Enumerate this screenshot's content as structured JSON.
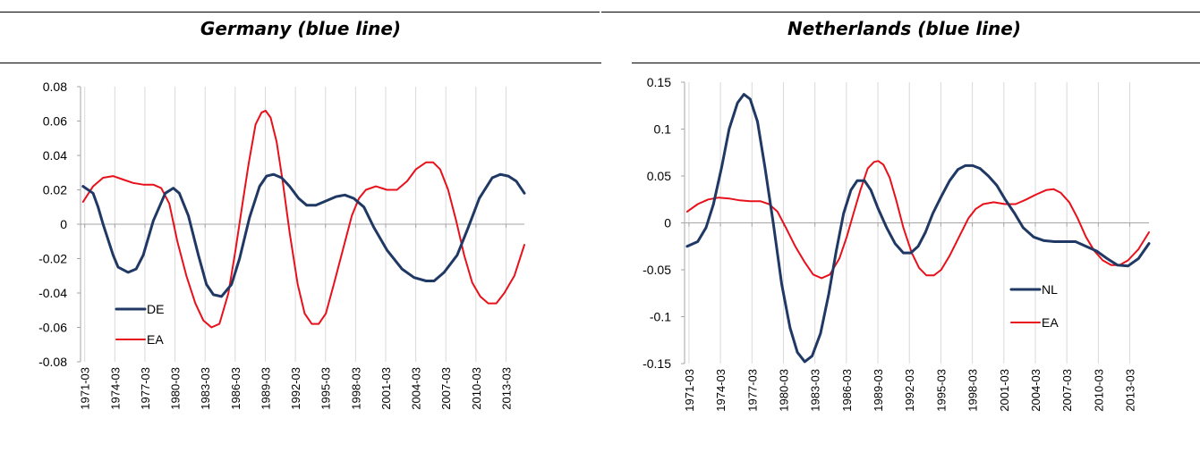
{
  "panels": [
    {
      "title": "Germany (blue line)"
    },
    {
      "title": "Netherlands (blue line)"
    }
  ],
  "colors": {
    "blue": "#1f3864",
    "red": "#e8101a",
    "grid": "#d9d9d9",
    "axis": "#a6a6a6"
  },
  "chart_data": [
    {
      "type": "line",
      "title": "Germany (blue line)",
      "xlabel": "",
      "ylabel": "",
      "x_ticks": [
        "1971-03",
        "1974-03",
        "1977-03",
        "1980-03",
        "1983-03",
        "1986-03",
        "1989-03",
        "1992-03",
        "1995-03",
        "1998-03",
        "2001-03",
        "2004-03",
        "2007-03",
        "2010-03",
        "2013-03"
      ],
      "ylim": [
        -0.08,
        0.08
      ],
      "y_ticks": [
        "-0.08",
        "-0.06",
        "-0.04",
        "-0.02",
        "0",
        "0.02",
        "0.04",
        "0.06",
        "0.08"
      ],
      "y_tick_values": [
        -0.08,
        -0.06,
        -0.04,
        -0.02,
        0,
        0.02,
        0.04,
        0.06,
        0.08
      ],
      "grid": "vertical",
      "legend_position": "bottom-left",
      "series": [
        {
          "name": "DE",
          "color": "#1f3864",
          "width": 3,
          "x": [
            1971.0,
            1972.0,
            1972.5,
            1973.0,
            1974.0,
            1974.5,
            1975.5,
            1976.3,
            1977.0,
            1978.0,
            1979.2,
            1980.0,
            1980.6,
            1981.5,
            1982.5,
            1983.3,
            1984.0,
            1984.8,
            1985.8,
            1986.6,
            1987.6,
            1988.6,
            1989.3,
            1990.0,
            1990.8,
            1991.6,
            1992.5,
            1993.3,
            1994.2,
            1995.0,
            1996.2,
            1997.1,
            1998.0,
            1999.0,
            2000.0,
            2001.3,
            2002.8,
            2004.0,
            2005.2,
            2006.0,
            2007.0,
            2008.3,
            2009.4,
            2010.5,
            2011.8,
            2012.6,
            2013.4,
            2014.2,
            2015.0
          ],
          "y": [
            0.022,
            0.018,
            0.01,
            0.0,
            -0.018,
            -0.025,
            -0.028,
            -0.026,
            -0.018,
            0.002,
            0.018,
            0.021,
            0.018,
            0.005,
            -0.018,
            -0.035,
            -0.041,
            -0.042,
            -0.035,
            -0.02,
            0.004,
            0.022,
            0.028,
            0.029,
            0.027,
            0.022,
            0.015,
            0.011,
            0.011,
            0.013,
            0.016,
            0.017,
            0.015,
            0.01,
            -0.002,
            -0.015,
            -0.026,
            -0.031,
            -0.033,
            -0.033,
            -0.028,
            -0.018,
            -0.002,
            0.015,
            0.027,
            0.029,
            0.028,
            0.025,
            0.018
          ]
        },
        {
          "name": "EA",
          "color": "#e8101a",
          "width": 2,
          "x": [
            1971.0,
            1972.0,
            1973.0,
            1974.0,
            1975.0,
            1976.0,
            1977.0,
            1978.0,
            1978.8,
            1979.6,
            1980.4,
            1981.3,
            1982.2,
            1983.0,
            1983.8,
            1984.6,
            1985.5,
            1986.2,
            1986.9,
            1987.5,
            1988.2,
            1988.8,
            1989.2,
            1989.7,
            1990.3,
            1990.9,
            1991.6,
            1992.4,
            1993.1,
            1993.8,
            1994.5,
            1995.2,
            1996.0,
            1996.9,
            1997.8,
            1998.5,
            1999.2,
            2000.2,
            2001.3,
            2002.3,
            2003.3,
            2004.2,
            2005.2,
            2005.9,
            2006.6,
            2007.4,
            2008.2,
            2009.0,
            2009.8,
            2010.6,
            2011.4,
            2012.2,
            2013.0,
            2014.0,
            2015.0
          ],
          "y": [
            0.013,
            0.022,
            0.027,
            0.028,
            0.026,
            0.024,
            0.023,
            0.023,
            0.021,
            0.012,
            -0.01,
            -0.03,
            -0.046,
            -0.056,
            -0.06,
            -0.058,
            -0.04,
            -0.015,
            0.012,
            0.035,
            0.058,
            0.065,
            0.066,
            0.062,
            0.048,
            0.025,
            -0.005,
            -0.035,
            -0.052,
            -0.058,
            -0.058,
            -0.052,
            -0.035,
            -0.015,
            0.005,
            0.015,
            0.02,
            0.022,
            0.02,
            0.02,
            0.025,
            0.032,
            0.036,
            0.036,
            0.032,
            0.02,
            0.002,
            -0.018,
            -0.034,
            -0.042,
            -0.046,
            -0.046,
            -0.04,
            -0.03,
            -0.012
          ]
        }
      ]
    },
    {
      "type": "line",
      "title": "Netherlands (blue line)",
      "xlabel": "",
      "ylabel": "",
      "x_ticks": [
        "1971-03",
        "1974-03",
        "1977-03",
        "1980-03",
        "1983-03",
        "1986-03",
        "1989-03",
        "1992-03",
        "1995-03",
        "1998-03",
        "2001-03",
        "2004-03",
        "2007-03",
        "2010-03",
        "2013-03"
      ],
      "ylim": [
        -0.15,
        0.15
      ],
      "y_ticks": [
        "-0.15",
        "-0.1",
        "-0.05",
        "0",
        "0.05",
        "0.1",
        "0.15"
      ],
      "y_tick_values": [
        -0.15,
        -0.1,
        -0.05,
        0,
        0.05,
        0.1,
        0.15
      ],
      "grid": "vertical",
      "legend_position": "middle-right",
      "series": [
        {
          "name": "NL",
          "color": "#1f3864",
          "width": 3,
          "x": [
            1971.0,
            1972.0,
            1972.8,
            1973.5,
            1974.3,
            1975.0,
            1975.8,
            1976.4,
            1977.0,
            1977.7,
            1978.4,
            1979.2,
            1980.0,
            1980.8,
            1981.5,
            1982.2,
            1982.9,
            1983.7,
            1984.5,
            1985.2,
            1985.9,
            1986.6,
            1987.2,
            1987.9,
            1988.5,
            1989.2,
            1990.0,
            1990.8,
            1991.6,
            1992.3,
            1993.0,
            1993.7,
            1994.4,
            1995.2,
            1996.0,
            1996.8,
            1997.5,
            1998.2,
            1998.9,
            1999.7,
            2000.5,
            2001.3,
            2002.2,
            2003.0,
            2004.0,
            2005.0,
            2006.0,
            2007.0,
            2008.0,
            2009.0,
            2010.0,
            2011.0,
            2012.0,
            2013.0,
            2014.0,
            2015.0
          ],
          "y": [
            -0.025,
            -0.02,
            -0.005,
            0.02,
            0.06,
            0.1,
            0.128,
            0.137,
            0.132,
            0.108,
            0.06,
            0.0,
            -0.065,
            -0.112,
            -0.138,
            -0.148,
            -0.142,
            -0.118,
            -0.075,
            -0.03,
            0.01,
            0.035,
            0.045,
            0.045,
            0.035,
            0.015,
            -0.005,
            -0.022,
            -0.032,
            -0.032,
            -0.025,
            -0.01,
            0.01,
            0.028,
            0.045,
            0.057,
            0.061,
            0.061,
            0.058,
            0.05,
            0.04,
            0.025,
            0.01,
            -0.005,
            -0.015,
            -0.019,
            -0.02,
            -0.02,
            -0.02,
            -0.025,
            -0.03,
            -0.038,
            -0.045,
            -0.046,
            -0.038,
            -0.022
          ]
        },
        {
          "name": "EA",
          "color": "#e8101a",
          "width": 2,
          "x": [
            1971.0,
            1972.0,
            1973.0,
            1974.0,
            1975.0,
            1976.0,
            1977.0,
            1978.0,
            1978.8,
            1979.6,
            1980.4,
            1981.3,
            1982.2,
            1983.0,
            1983.8,
            1984.6,
            1985.5,
            1986.2,
            1986.9,
            1987.5,
            1988.2,
            1988.8,
            1989.2,
            1989.7,
            1990.3,
            1990.9,
            1991.6,
            1992.4,
            1993.1,
            1993.8,
            1994.5,
            1995.2,
            1996.0,
            1996.9,
            1997.8,
            1998.5,
            1999.2,
            2000.2,
            2001.3,
            2002.3,
            2003.3,
            2004.2,
            2005.2,
            2005.9,
            2006.6,
            2007.4,
            2008.2,
            2009.0,
            2009.8,
            2010.6,
            2011.4,
            2012.2,
            2013.0,
            2014.0,
            2015.0
          ],
          "y": [
            0.012,
            0.02,
            0.025,
            0.027,
            0.026,
            0.024,
            0.023,
            0.023,
            0.02,
            0.012,
            -0.005,
            -0.025,
            -0.042,
            -0.055,
            -0.059,
            -0.055,
            -0.038,
            -0.015,
            0.012,
            0.035,
            0.058,
            0.065,
            0.066,
            0.062,
            0.048,
            0.025,
            -0.005,
            -0.032,
            -0.048,
            -0.056,
            -0.056,
            -0.05,
            -0.035,
            -0.015,
            0.005,
            0.015,
            0.02,
            0.022,
            0.02,
            0.02,
            0.025,
            0.03,
            0.035,
            0.036,
            0.032,
            0.022,
            0.005,
            -0.015,
            -0.03,
            -0.04,
            -0.045,
            -0.045,
            -0.04,
            -0.028,
            -0.01
          ]
        }
      ]
    }
  ]
}
